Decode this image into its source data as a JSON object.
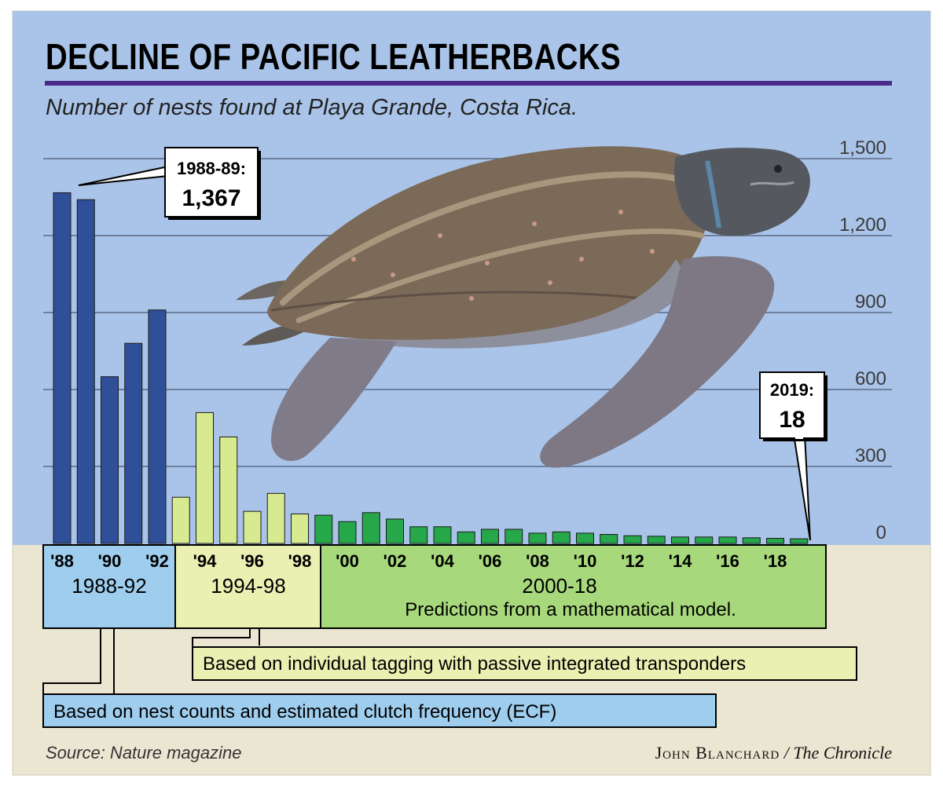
{
  "title": "DECLINE OF PACIFIC LEATHERBACKS",
  "subtitle": "Number of nests found at Playa Grande, Costa Rica.",
  "colors": {
    "background": "#a9c4e8",
    "lower_band": "#ebe6d2",
    "period1": "#2f4f99",
    "period2": "#d8ea8f",
    "period3": "#26a84a",
    "period1_box": "#9fcdee",
    "period2_box": "#eaf0b2",
    "period3_box": "#a7d87c",
    "rule": "#4b2a8c"
  },
  "chart_data": {
    "type": "bar",
    "categories": [
      "1988",
      "1989",
      "1990",
      "1991",
      "1992",
      "1993",
      "1994",
      "1995",
      "1996",
      "1997",
      "1998",
      "1999",
      "2000",
      "2001",
      "2002",
      "2003",
      "2004",
      "2005",
      "2006",
      "2007",
      "2008",
      "2009",
      "2010",
      "2011",
      "2012",
      "2013",
      "2014",
      "2015",
      "2016",
      "2017",
      "2018",
      "2019"
    ],
    "values": [
      1367,
      1340,
      650,
      780,
      910,
      180,
      510,
      415,
      125,
      195,
      115,
      110,
      85,
      120,
      95,
      65,
      65,
      45,
      55,
      55,
      40,
      45,
      40,
      35,
      30,
      28,
      25,
      25,
      25,
      22,
      20,
      18
    ],
    "groups": [
      0,
      0,
      0,
      0,
      0,
      1,
      1,
      1,
      1,
      1,
      1,
      2,
      2,
      2,
      2,
      2,
      2,
      2,
      2,
      2,
      2,
      2,
      2,
      2,
      2,
      2,
      2,
      2,
      2,
      2,
      2,
      2
    ],
    "y_ticks": [
      "1,500",
      "1,200",
      "900",
      "600",
      "300",
      "0"
    ],
    "y_tick_values": [
      1500,
      1200,
      900,
      600,
      300,
      0
    ],
    "ylim": [
      0,
      1500
    ],
    "x_tick_labels": [
      "'88",
      "'90",
      "'92",
      "'94",
      "'96",
      "'98",
      "'00",
      "'02",
      "'04",
      "'06",
      "'08",
      "'10",
      "'12",
      "'14",
      "'16",
      "'18"
    ],
    "grid": true,
    "periods": [
      {
        "label": "1988-92",
        "note": ""
      },
      {
        "label": "1994-98",
        "note": ""
      },
      {
        "label": "2000-18",
        "note": "Predictions from a mathematical model."
      }
    ],
    "methods": [
      "Based on individual tagging with passive integrated transponders",
      "Based on nest counts and estimated clutch frequency (ECF)"
    ],
    "callouts": [
      {
        "label": "1988-89:",
        "value": "1,367"
      },
      {
        "label": "2019:",
        "value": "18"
      }
    ]
  },
  "footer": {
    "source": "Source: Nature magazine",
    "credit_name": "John Blanchard",
    "credit_paper": " / The Chronicle"
  }
}
